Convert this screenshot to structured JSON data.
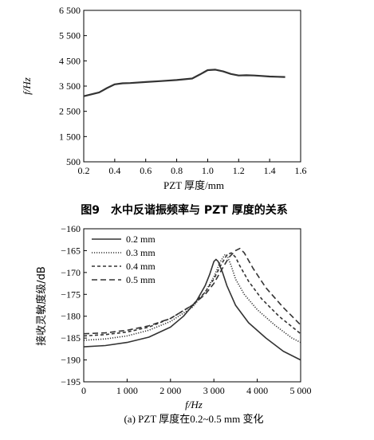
{
  "chart_data": [
    {
      "type": "line",
      "title": "",
      "xlabel": "PZT 厚度/mm",
      "ylabel": "f/Hz",
      "xlim": [
        0.2,
        1.6
      ],
      "ylim": [
        500,
        6500
      ],
      "x_ticks": [
        0.2,
        0.4,
        0.6,
        0.8,
        1.0,
        1.2,
        1.4,
        1.6
      ],
      "x_tick_labels": [
        "0.2",
        "0.4",
        "0.6",
        "0.8",
        "1.0",
        "1.2",
        "1.4",
        "1.6"
      ],
      "y_ticks": [
        500,
        1500,
        2500,
        3500,
        4500,
        5500,
        6500
      ],
      "y_tick_labels": [
        "500",
        "1 500",
        "2 500",
        "3 500",
        "4 500",
        "5 500",
        "6 500"
      ],
      "series": [
        {
          "x": [
            0.2,
            0.3,
            0.35,
            0.4,
            0.45,
            0.5,
            0.6,
            0.7,
            0.8,
            0.9,
            0.95,
            1.0,
            1.05,
            1.1,
            1.15,
            1.2,
            1.25,
            1.3,
            1.35,
            1.4,
            1.45,
            1.5
          ],
          "values": [
            3100,
            3250,
            3420,
            3570,
            3610,
            3620,
            3660,
            3700,
            3740,
            3800,
            3960,
            4130,
            4150,
            4080,
            3980,
            3920,
            3930,
            3920,
            3900,
            3880,
            3870,
            3860
          ],
          "color": "#333333"
        }
      ],
      "caption": "图9　水中反谐振频率与 PZT 厚度的关系"
    },
    {
      "type": "line",
      "title": "",
      "xlabel": "f/Hz",
      "ylabel": "接收灵敏度级/dB",
      "xlim": [
        0,
        5000
      ],
      "ylim": [
        -195,
        -160
      ],
      "x_ticks": [
        0,
        1000,
        2000,
        3000,
        4000,
        5000
      ],
      "x_tick_labels": [
        "0",
        "1 000",
        "2 000",
        "3 000",
        "4 000",
        "5 000"
      ],
      "y_ticks": [
        -195,
        -190,
        -185,
        -180,
        -175,
        -170,
        -165,
        -160
      ],
      "y_tick_labels": [
        "−195",
        "−190",
        "−185",
        "−180",
        "−175",
        "−170",
        "−165",
        "−160"
      ],
      "legend": "top-left",
      "series": [
        {
          "name": "0.2 mm",
          "dash": "solid",
          "x": [
            0,
            500,
            1000,
            1500,
            2000,
            2300,
            2600,
            2800,
            2900,
            3000,
            3050,
            3100,
            3200,
            3300,
            3500,
            3800,
            4200,
            4600,
            5000
          ],
          "values": [
            -187,
            -186.7,
            -186,
            -184.8,
            -182.5,
            -180,
            -176.5,
            -173,
            -170.5,
            -167.5,
            -167,
            -167.5,
            -170,
            -173,
            -177.5,
            -181.5,
            -185,
            -188,
            -190
          ]
        },
        {
          "name": "0.3 mm",
          "dash": "dotted",
          "x": [
            0,
            500,
            1000,
            1500,
            2000,
            2500,
            2800,
            3000,
            3150,
            3250,
            3300,
            3400,
            3500,
            3700,
            4000,
            4400,
            4800,
            5000
          ],
          "values": [
            -185.5,
            -185.2,
            -184.5,
            -183.2,
            -181.2,
            -178,
            -174.5,
            -171,
            -167.5,
            -166,
            -166,
            -168.5,
            -171.5,
            -175,
            -178.5,
            -182,
            -185,
            -186
          ]
        },
        {
          "name": "0.4 mm",
          "dash": "short-dash",
          "x": [
            0,
            500,
            1000,
            1500,
            2000,
            2500,
            2800,
            3000,
            3150,
            3300,
            3400,
            3500,
            3600,
            3800,
            4100,
            4500,
            5000
          ],
          "values": [
            -184.5,
            -184.2,
            -183.6,
            -182.5,
            -180.5,
            -177.5,
            -174.5,
            -171.5,
            -168.5,
            -166,
            -165.5,
            -166.5,
            -168.5,
            -172,
            -176,
            -180,
            -184
          ]
        },
        {
          "name": "0.5 mm",
          "dash": "long-dash",
          "x": [
            0,
            500,
            1000,
            1500,
            2000,
            2500,
            2800,
            3000,
            3200,
            3350,
            3500,
            3600,
            3700,
            3900,
            4200,
            4600,
            5000
          ],
          "values": [
            -184,
            -183.8,
            -183.2,
            -182.2,
            -180.5,
            -177.5,
            -175,
            -172.5,
            -169,
            -166.5,
            -165,
            -164.5,
            -165.5,
            -169,
            -173.5,
            -178,
            -182
          ]
        }
      ],
      "caption": "(a) PZT 厚度在0.2~0.5 mm 变化"
    }
  ]
}
